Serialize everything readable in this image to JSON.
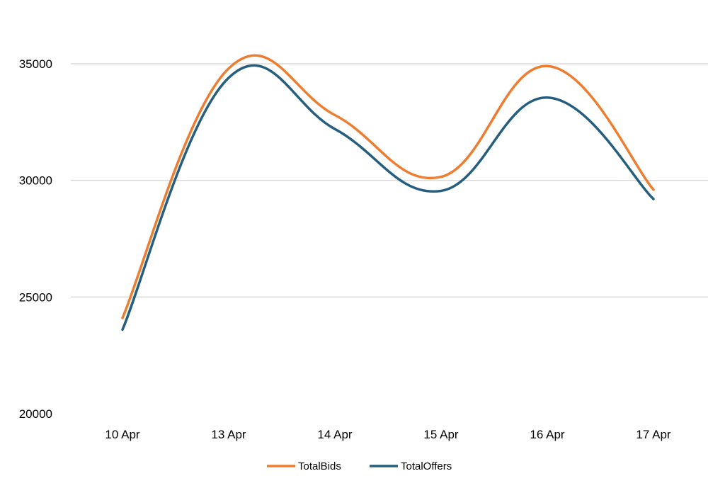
{
  "chart_data": {
    "type": "line",
    "title": "",
    "xlabel": "",
    "ylabel": "",
    "categories": [
      "10 Apr",
      "13 Apr",
      "14 Apr",
      "15 Apr",
      "16 Apr",
      "17 Apr"
    ],
    "series": [
      {
        "name": "TotalBids",
        "color": "#ED7D31",
        "values": [
          24100,
          34800,
          32800,
          30150,
          34900,
          29600
        ]
      },
      {
        "name": "TotalOffers",
        "color": "#255E7E",
        "values": [
          23600,
          34400,
          32200,
          29550,
          33550,
          29200
        ]
      }
    ],
    "ylim": [
      20000,
      35000
    ],
    "yticks": [
      "20000",
      "25000",
      "30000",
      "35000"
    ],
    "grid": true,
    "smooth": true,
    "legend": "bottom-center"
  }
}
